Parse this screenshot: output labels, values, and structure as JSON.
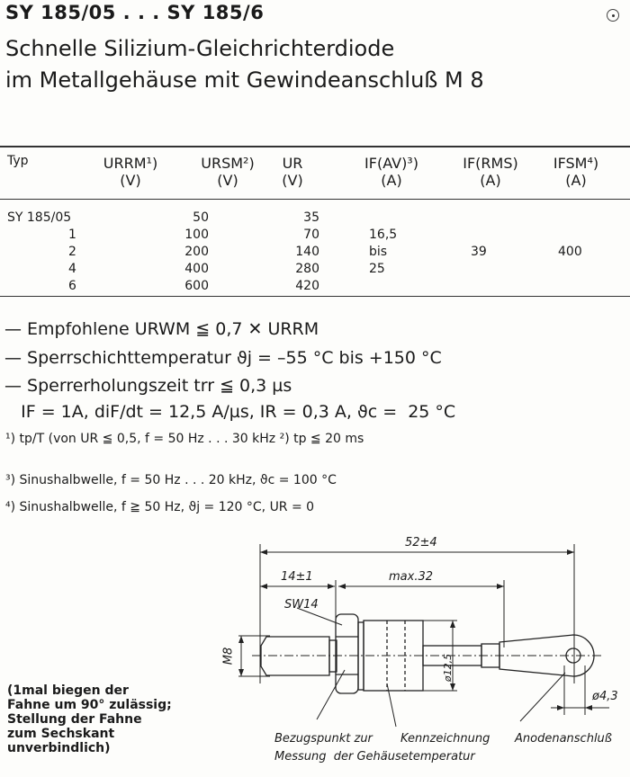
{
  "title": {
    "line1": "SY 185/05 . . . SY 185/6",
    "line2": "Schnelle Silizium-Gleichrichterdiode",
    "line3": "im Metallgehäuse mit Gewindeanschluß M 8"
  },
  "table": {
    "headers": [
      {
        "label": "Typ",
        "unit": ""
      },
      {
        "label": "URRM¹)",
        "unit": "(V)"
      },
      {
        "label": "URSM²)",
        "unit": "(V)"
      },
      {
        "label": "UR",
        "unit": "(V)"
      },
      {
        "label": "IF(AV)³)",
        "unit": "(A)"
      },
      {
        "label": "IF(RMS)",
        "unit": "(A)"
      },
      {
        "label": "IFSM⁴)",
        "unit": "(A)"
      }
    ],
    "types": [
      "SY  185/05",
      "1",
      "2",
      "4",
      "6"
    ],
    "ursm": [
      "50",
      "100",
      "200",
      "400",
      "600"
    ],
    "ur": [
      "35",
      "70",
      "140",
      "280",
      "420"
    ],
    "ifav": [
      "16,5",
      "bis",
      "25"
    ],
    "ifrms": "39",
    "ifsm": "400"
  },
  "notes": [
    "— Empfohlene URWM ≦ 0,7 ✕ URRM",
    "— Sperrschichttemperatur     ϑj = –55 °C bis +150 °C",
    "— Sperrerholungszeit trr ≦ 0,3 µs",
    "   IF = 1A, diF/dt = 12,5 A/µs, IR = 0,3 A, ϑc =  25 °C"
  ],
  "footnotes": [
    "¹) tp/T (von UR ≦ 0,5, f = 50 Hz . . . 30 kHz  ²) tp ≦ 20 ms",
    "³)  Sinushalbwelle, f = 50 Hz . . . 20 kHz,  ϑc = 100 °C",
    "⁴)  Sinushalbwelle, f ≧ 50 Hz,  ϑj  = 120 °C,  UR = 0"
  ],
  "side_note": "(1mal biegen der\nFahne um 90° zulässig;\nStellung der Fahne\nzum Sechskant\nunverbindlich)",
  "drawing": {
    "dim_total": "52±4",
    "dim_thread": "14±1",
    "dim_body": "max.32",
    "wrench": "SW14",
    "thread": "M8",
    "dia_body": "ø12,5",
    "dia_hole": "ø4,3",
    "label_ref": "Bezugspunkt zur",
    "label_ref2": "Messung  der Gehäusetemperatur",
    "label_mark": "Kennzeichnung",
    "label_anode": "Anodenanschluß"
  }
}
